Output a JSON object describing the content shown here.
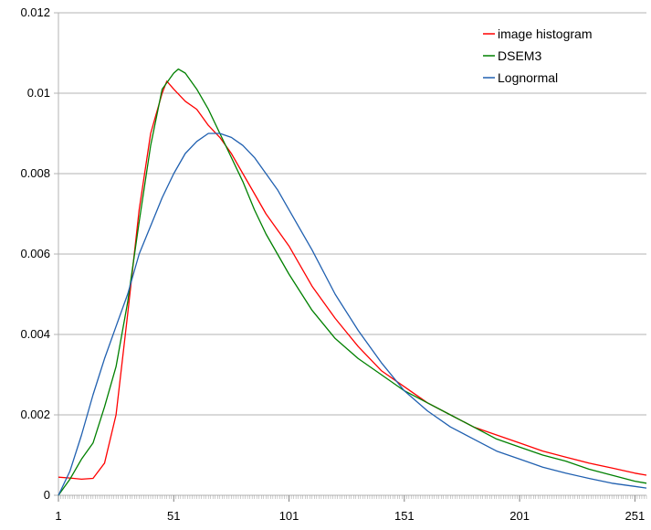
{
  "chart_data": {
    "type": "line",
    "title": "",
    "xlabel": "",
    "ylabel": "",
    "xlim": [
      1,
      256
    ],
    "ylim": [
      0,
      0.012
    ],
    "grid": true,
    "legend_position": "top-right",
    "x_ticks": [
      {
        "value": 1,
        "label": "1"
      },
      {
        "value": 51,
        "label": "51"
      },
      {
        "value": 101,
        "label": "101"
      },
      {
        "value": 151,
        "label": "151"
      },
      {
        "value": 201,
        "label": "201"
      },
      {
        "value": 251,
        "label": "251"
      }
    ],
    "y_ticks": [
      {
        "value": 0,
        "label": "0"
      },
      {
        "value": 0.002,
        "label": "0.002"
      },
      {
        "value": 0.004,
        "label": "0.004"
      },
      {
        "value": 0.006,
        "label": "0.006"
      },
      {
        "value": 0.008,
        "label": "0.008"
      },
      {
        "value": 0.01,
        "label": "0.01"
      },
      {
        "value": 0.012,
        "label": "0.012"
      }
    ],
    "series": [
      {
        "name": "image histogram",
        "color": "#ff0000",
        "x": [
          1,
          6,
          11,
          16,
          21,
          26,
          31,
          36,
          41,
          46,
          48,
          51,
          56,
          61,
          66,
          71,
          76,
          81,
          86,
          91,
          96,
          101,
          111,
          121,
          131,
          141,
          151,
          161,
          171,
          181,
          191,
          201,
          211,
          221,
          231,
          241,
          251,
          256
        ],
        "y": [
          0.00045,
          0.00043,
          0.0004,
          0.00042,
          0.0008,
          0.002,
          0.0045,
          0.0071,
          0.009,
          0.01,
          0.0103,
          0.0101,
          0.0098,
          0.0096,
          0.0092,
          0.0089,
          0.0085,
          0.008,
          0.0075,
          0.007,
          0.0066,
          0.0062,
          0.0052,
          0.0044,
          0.0037,
          0.0031,
          0.0027,
          0.0023,
          0.002,
          0.0017,
          0.0015,
          0.0013,
          0.0011,
          0.00095,
          0.0008,
          0.00068,
          0.00055,
          0.0005
        ]
      },
      {
        "name": "DSEM3",
        "color": "#008000",
        "x": [
          1,
          6,
          11,
          16,
          21,
          26,
          31,
          36,
          41,
          46,
          51,
          53,
          56,
          61,
          66,
          71,
          76,
          81,
          86,
          91,
          96,
          101,
          111,
          121,
          131,
          141,
          151,
          161,
          171,
          181,
          191,
          201,
          211,
          221,
          231,
          241,
          251,
          256
        ],
        "y": [
          0.0,
          0.0004,
          0.0009,
          0.0013,
          0.0022,
          0.0032,
          0.0048,
          0.0068,
          0.0087,
          0.0101,
          0.0105,
          0.0106,
          0.0105,
          0.0101,
          0.0096,
          0.009,
          0.0084,
          0.0078,
          0.0071,
          0.0065,
          0.006,
          0.0055,
          0.0046,
          0.0039,
          0.0034,
          0.003,
          0.0026,
          0.0023,
          0.002,
          0.0017,
          0.0014,
          0.0012,
          0.001,
          0.00085,
          0.00065,
          0.0005,
          0.00035,
          0.0003
        ]
      },
      {
        "name": "Lognormal",
        "color": "#2060b0",
        "x": [
          1,
          6,
          11,
          16,
          21,
          26,
          31,
          36,
          41,
          46,
          51,
          56,
          61,
          66,
          71,
          76,
          81,
          86,
          91,
          96,
          101,
          111,
          121,
          131,
          141,
          151,
          161,
          171,
          181,
          191,
          201,
          211,
          221,
          231,
          241,
          251,
          256
        ],
        "y": [
          0.0,
          0.0006,
          0.0015,
          0.0025,
          0.0034,
          0.0042,
          0.005,
          0.006,
          0.0067,
          0.0074,
          0.008,
          0.0085,
          0.0088,
          0.009,
          0.009,
          0.0089,
          0.0087,
          0.0084,
          0.008,
          0.0076,
          0.0071,
          0.0061,
          0.005,
          0.0041,
          0.0033,
          0.0026,
          0.0021,
          0.0017,
          0.0014,
          0.0011,
          0.0009,
          0.0007,
          0.00055,
          0.00042,
          0.0003,
          0.00022,
          0.00018
        ]
      }
    ]
  }
}
